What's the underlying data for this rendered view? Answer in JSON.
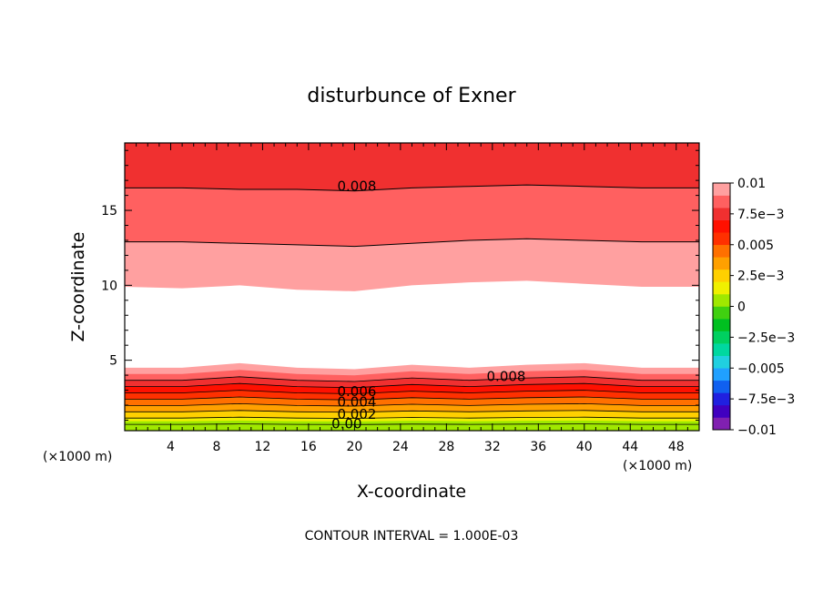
{
  "chart_data": {
    "type": "heatmap",
    "title": "disturbunce of Exner",
    "xlabel": "X-coordinate",
    "ylabel": "Z-coordinate",
    "x_unit": "(×1000 m)",
    "x_unit_secondary": "(×1000 m)",
    "footer": "CONTOUR INTERVAL = 1.000E-03",
    "xlim": [
      0,
      50
    ],
    "ylim": [
      0.3,
      19.5
    ],
    "x_ticks": [
      4,
      8,
      12,
      16,
      20,
      24,
      28,
      32,
      36,
      40,
      44,
      48
    ],
    "x_tick_labels": [
      "4",
      "8",
      "12",
      "16",
      "20",
      "24",
      "28",
      "32",
      "36",
      "40",
      "44",
      "48"
    ],
    "y_ticks": [
      5,
      10,
      15
    ],
    "y_tick_labels": [
      "5",
      "10",
      "15"
    ],
    "colorbar": {
      "range": [
        -0.01,
        0.01
      ],
      "tick_labels": [
        "0.01",
        "7.5e−3",
        "0.005",
        "2.5e−3",
        "0",
        "−2.5e−3",
        "−0.005",
        "−7.5e−3",
        "−0.01"
      ],
      "tick_values": [
        0.01,
        0.0075,
        0.005,
        0.0025,
        0,
        -0.0025,
        -0.005,
        -0.0075,
        -0.01
      ],
      "colors": [
        "#8020b0",
        "#4000c0",
        "#2020e0",
        "#1060f0",
        "#20a0ff",
        "#20d0e0",
        "#00d8a0",
        "#00d060",
        "#00c020",
        "#40d010",
        "#a0e800",
        "#f0f000",
        "#ffd000",
        "#ffa000",
        "#ff7000",
        "#ff3000",
        "#ff1000",
        "#f03030",
        "#ff6060",
        "#ffa0a0"
      ]
    },
    "contour_labels": [
      {
        "text": "0.008",
        "x": 18.5,
        "y": 16.3
      },
      {
        "text": "0.008",
        "x": 31.5,
        "y": 3.6
      },
      {
        "text": "0.006",
        "x": 18.5,
        "y": 2.6
      },
      {
        "text": "0.004",
        "x": 18.5,
        "y": 1.9
      },
      {
        "text": "0.002",
        "x": 18.5,
        "y": 1.1
      },
      {
        "text": "0.00",
        "x": 18.0,
        "y": 0.45
      }
    ],
    "field": {
      "upper_bands": [
        {
          "value": 0.0095,
          "bottom": [
            9.9,
            9.8,
            10.0,
            9.7,
            9.6,
            10.0,
            10.2,
            10.3,
            10.1,
            9.9,
            9.9
          ]
        },
        {
          "value": 0.009,
          "bottom": [
            11.3,
            11.4,
            11.3,
            11.2,
            11.0,
            11.3,
            11.5,
            11.6,
            11.5,
            11.3,
            11.3
          ]
        },
        {
          "value": 0.0085,
          "bottom": [
            12.9,
            12.9,
            12.8,
            12.7,
            12.6,
            12.8,
            13.0,
            13.1,
            13.0,
            12.9,
            12.9
          ]
        },
        {
          "value": 0.008,
          "bottom": [
            14.7,
            14.7,
            14.6,
            14.5,
            14.4,
            14.6,
            14.8,
            14.9,
            14.8,
            14.7,
            14.7
          ]
        },
        {
          "value": 0.0075,
          "bottom": [
            16.5,
            16.5,
            16.4,
            16.4,
            16.3,
            16.5,
            16.6,
            16.7,
            16.6,
            16.5,
            16.5
          ]
        },
        {
          "value": 0.007,
          "bottom": [
            18.9,
            18.9,
            18.9,
            18.9,
            18.9,
            18.9,
            18.9,
            18.9,
            18.9,
            18.9,
            18.9
          ]
        }
      ],
      "lower_top": [
        4.5,
        4.5,
        4.8,
        4.5,
        4.4,
        4.7,
        4.5,
        4.7,
        4.8,
        4.5,
        4.5
      ],
      "lower_levels": [
        0.0095,
        0.009,
        0.0085,
        0.008,
        0.0075,
        0.007,
        0.0065,
        0.006,
        0.0055,
        0.005,
        0.0045,
        0.004,
        0.0035,
        0.003,
        0.0025,
        0.002,
        0.0015,
        0.001,
        0.0005,
        0.0
      ]
    }
  }
}
